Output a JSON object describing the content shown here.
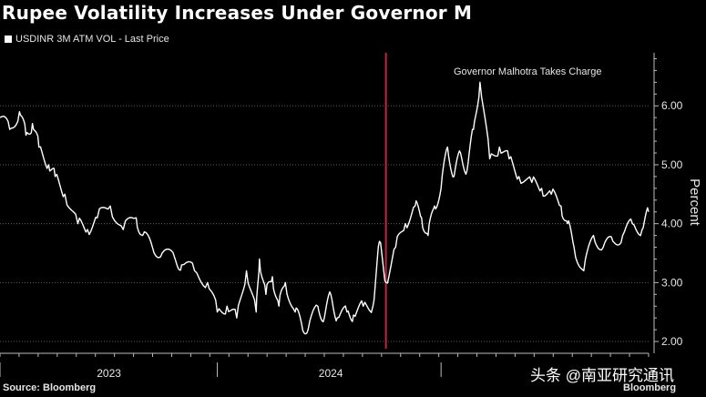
{
  "title": "Rupee Volatility Increases Under Governor M",
  "legend_label": "USDINR 3M ATM VOL - Last Price",
  "source": "Source: Bloomberg",
  "brand": "Bloomberg",
  "watermark": "头条 @南亚研究通讯",
  "colors": {
    "background": "#000000",
    "line": "#ffffff",
    "marker": "#c0283a",
    "grid": "#5a5a5a"
  },
  "chart_data": {
    "type": "line",
    "series": [
      {
        "name": "USDINR 3M ATM VOL - Last Price",
        "x": [
          0,
          0.015,
          0.03,
          0.04,
          0.05,
          0.06,
          0.075,
          0.085,
          0.1,
          0.12,
          0.135,
          0.15,
          0.17,
          0.19,
          0.21,
          0.22,
          0.235,
          0.25,
          0.27,
          0.28,
          0.3,
          0.32,
          0.335,
          0.35,
          0.365,
          0.38,
          0.395,
          0.4,
          0.41,
          0.42,
          0.43,
          0.44,
          0.455,
          0.465,
          0.475,
          0.49,
          0.5,
          0.51,
          0.52,
          0.535,
          0.545,
          0.56,
          0.575,
          0.585,
          0.595,
          0.61,
          0.625,
          0.64,
          0.65,
          0.66,
          0.67,
          0.68,
          0.69,
          0.7,
          0.71,
          0.72,
          0.73,
          0.74,
          0.755,
          0.77,
          0.785,
          0.8,
          0.82,
          0.835,
          0.85,
          0.865,
          0.875,
          0.885,
          0.9,
          0.915,
          0.93,
          0.945,
          0.96,
          0.975,
          0.99,
          1.0
        ],
        "y": [
          5.8,
          5.6,
          5.9,
          5.5,
          5.7,
          5.3,
          5.0,
          4.8,
          4.5,
          4.0,
          3.9,
          4.1,
          4.3,
          3.9,
          4.1,
          3.8,
          3.6,
          3.5,
          3.4,
          3.3,
          3.2,
          3.0,
          2.5,
          2.6,
          2.4,
          3.2,
          2.5,
          3.4,
          2.8,
          3.1,
          2.6,
          3.0,
          2.5,
          2.3,
          2.2,
          2.6,
          2.4,
          2.8,
          2.4,
          2.5,
          2.45,
          2.6,
          2.6,
          3.7,
          3.0,
          3.6,
          4.0,
          4.3,
          4.1,
          3.8,
          4.3,
          4.6,
          5.3,
          4.8,
          5.2,
          4.9,
          5.6,
          6.4,
          5.1,
          5.3,
          5.1,
          4.8,
          4.7,
          4.6,
          4.5,
          4.3,
          4.0,
          3.6,
          3.2,
          3.8,
          3.6,
          3.7,
          3.8,
          4.0,
          3.9,
          4.2
        ]
      }
    ],
    "yticks": [
      2.0,
      3.0,
      4.0,
      5.0,
      6.0
    ],
    "ytick_labels": [
      "2.00",
      "3.00",
      "4.00",
      "5.00",
      "6.00"
    ],
    "ylabel": "Percent",
    "xtick_labels": [
      "2023",
      "2024"
    ],
    "ylim": [
      1.8,
      6.9
    ],
    "annotation": "Governor Malhotra Takes Charge",
    "marker_x": 0.595,
    "marker_y_top": 6.9
  }
}
